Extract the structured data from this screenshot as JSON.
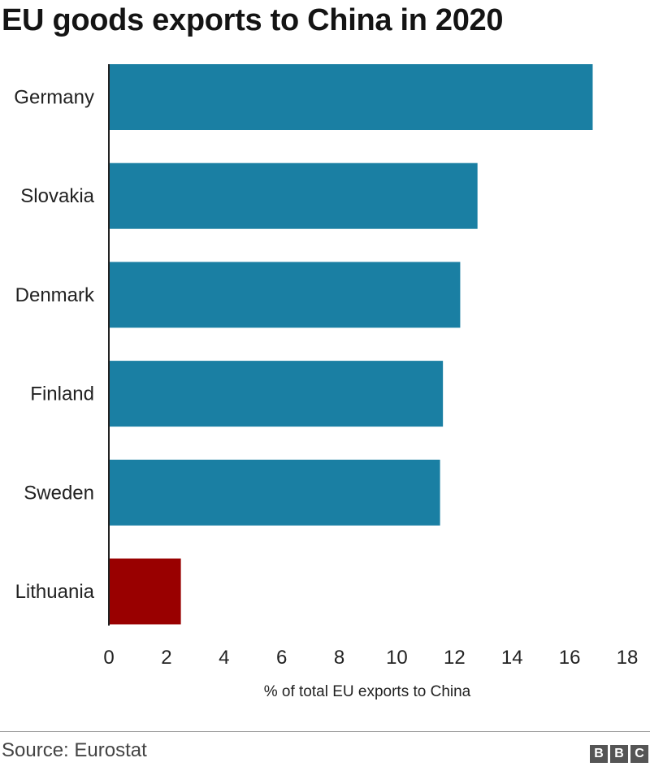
{
  "chart_data": {
    "type": "bar",
    "orientation": "horizontal",
    "title": "EU goods exports to China in 2020",
    "xlabel": "% of total EU exports to China",
    "categories": [
      "Germany",
      "Slovakia",
      "Denmark",
      "Finland",
      "Sweden",
      "Lithuania"
    ],
    "values": [
      16.8,
      12.8,
      12.2,
      11.6,
      11.5,
      2.5
    ],
    "xlim": [
      0,
      18
    ],
    "xticks": [
      0,
      2,
      4,
      6,
      8,
      10,
      12,
      14,
      16,
      18
    ],
    "grid": false,
    "colors": {
      "default": "#1a7fa3",
      "highlight": "#990000",
      "highlight_category": "Lithuania"
    }
  },
  "footer": {
    "source": "Source: Eurostat",
    "logo": [
      "B",
      "B",
      "C"
    ]
  }
}
